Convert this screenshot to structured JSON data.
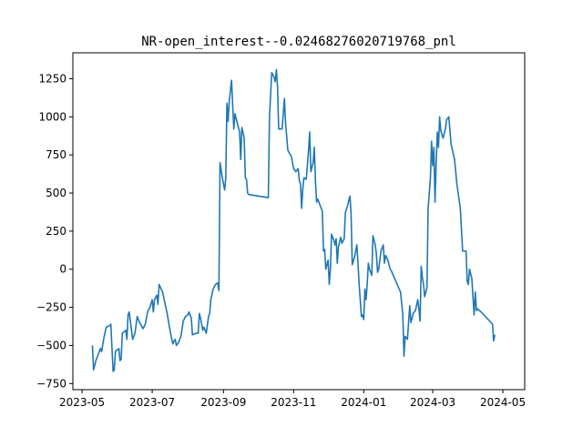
{
  "chart_data": {
    "type": "line",
    "title": "NR-open_interest--0.02468276020719768_pnl",
    "xlabel": "",
    "ylabel": "",
    "xlim": [
      "2023-04-23",
      "2024-05-20"
    ],
    "ylim": [
      -790,
      1420
    ],
    "x_ticks": [
      {
        "date": "2023-05-01",
        "label": "2023-05"
      },
      {
        "date": "2023-07-01",
        "label": "2023-07"
      },
      {
        "date": "2023-09-01",
        "label": "2023-09"
      },
      {
        "date": "2023-11-01",
        "label": "2023-11"
      },
      {
        "date": "2024-01-01",
        "label": "2024-01"
      },
      {
        "date": "2024-03-01",
        "label": "2024-03"
      },
      {
        "date": "2024-05-01",
        "label": "2024-05"
      }
    ],
    "y_ticks": [
      {
        "value": -750,
        "label": "−750"
      },
      {
        "value": -500,
        "label": "−500"
      },
      {
        "value": -250,
        "label": "−250"
      },
      {
        "value": 0,
        "label": "0"
      },
      {
        "value": 250,
        "label": "250"
      },
      {
        "value": 500,
        "label": "500"
      },
      {
        "value": 750,
        "label": "750"
      },
      {
        "value": 1000,
        "label": "1000"
      },
      {
        "value": 1250,
        "label": "1250"
      }
    ],
    "grid": false,
    "series": [
      {
        "color": "#1f77b4",
        "points": [
          [
            "2023-05-10",
            -500
          ],
          [
            "2023-05-11",
            -660
          ],
          [
            "2023-05-13",
            -600
          ],
          [
            "2023-05-15",
            -560
          ],
          [
            "2023-05-17",
            -520
          ],
          [
            "2023-05-18",
            -540
          ],
          [
            "2023-05-20",
            -450
          ],
          [
            "2023-05-22",
            -380
          ],
          [
            "2023-05-25",
            -370
          ],
          [
            "2023-05-26",
            -360
          ],
          [
            "2023-05-28",
            -670
          ],
          [
            "2023-05-29",
            -660
          ],
          [
            "2023-05-30",
            -540
          ],
          [
            "2023-06-02",
            -520
          ],
          [
            "2023-06-03",
            -600
          ],
          [
            "2023-06-04",
            -590
          ],
          [
            "2023-06-05",
            -420
          ],
          [
            "2023-06-08",
            -400
          ],
          [
            "2023-06-09",
            -460
          ],
          [
            "2023-06-10",
            -300
          ],
          [
            "2023-06-11",
            -280
          ],
          [
            "2023-06-12",
            -340
          ],
          [
            "2023-06-14",
            -460
          ],
          [
            "2023-06-16",
            -420
          ],
          [
            "2023-06-18",
            -310
          ],
          [
            "2023-06-20",
            -350
          ],
          [
            "2023-06-23",
            -390
          ],
          [
            "2023-06-25",
            -360
          ],
          [
            "2023-06-27",
            -280
          ],
          [
            "2023-06-29",
            -250
          ],
          [
            "2023-07-01",
            -200
          ],
          [
            "2023-07-02",
            -280
          ],
          [
            "2023-07-03",
            -200
          ],
          [
            "2023-07-05",
            -170
          ],
          [
            "2023-07-06",
            -230
          ],
          [
            "2023-07-07",
            -100
          ],
          [
            "2023-07-10",
            -150
          ],
          [
            "2023-07-12",
            -220
          ],
          [
            "2023-07-14",
            -290
          ],
          [
            "2023-07-16",
            -380
          ],
          [
            "2023-07-18",
            -460
          ],
          [
            "2023-07-19",
            -490
          ],
          [
            "2023-07-20",
            -470
          ],
          [
            "2023-07-21",
            -460
          ],
          [
            "2023-07-22",
            -500
          ],
          [
            "2023-07-24",
            -480
          ],
          [
            "2023-07-26",
            -440
          ],
          [
            "2023-07-28",
            -340
          ],
          [
            "2023-07-30",
            -310
          ],
          [
            "2023-08-01",
            -300
          ],
          [
            "2023-08-02",
            -280
          ],
          [
            "2023-08-03",
            -300
          ],
          [
            "2023-08-04",
            -320
          ],
          [
            "2023-08-05",
            -430
          ],
          [
            "2023-08-08",
            -420
          ],
          [
            "2023-08-10",
            -420
          ],
          [
            "2023-08-11",
            -290
          ],
          [
            "2023-08-12",
            -320
          ],
          [
            "2023-08-14",
            -400
          ],
          [
            "2023-08-15",
            -380
          ],
          [
            "2023-08-17",
            -420
          ],
          [
            "2023-08-19",
            -310
          ],
          [
            "2023-08-20",
            -290
          ],
          [
            "2023-08-21",
            -200
          ],
          [
            "2023-08-23",
            -130
          ],
          [
            "2023-08-25",
            -100
          ],
          [
            "2023-08-27",
            -90
          ],
          [
            "2023-08-28",
            -140
          ],
          [
            "2023-08-29",
            700
          ],
          [
            "2023-08-31",
            600
          ],
          [
            "2023-09-02",
            520
          ],
          [
            "2023-09-03",
            600
          ],
          [
            "2023-09-04",
            1090
          ],
          [
            "2023-09-05",
            970
          ],
          [
            "2023-09-06",
            1100
          ],
          [
            "2023-09-08",
            1240
          ],
          [
            "2023-09-10",
            920
          ],
          [
            "2023-09-11",
            1020
          ],
          [
            "2023-09-13",
            960
          ],
          [
            "2023-09-15",
            900
          ],
          [
            "2023-09-16",
            720
          ],
          [
            "2023-09-17",
            930
          ],
          [
            "2023-09-19",
            860
          ],
          [
            "2023-09-20",
            600
          ],
          [
            "2023-09-21",
            590
          ],
          [
            "2023-09-22",
            500
          ],
          [
            "2023-09-23",
            490
          ],
          [
            "2023-10-10",
            470
          ],
          [
            "2023-10-11",
            1000
          ],
          [
            "2023-10-13",
            1290
          ],
          [
            "2023-10-15",
            1260
          ],
          [
            "2023-10-16",
            1230
          ],
          [
            "2023-10-17",
            1310
          ],
          [
            "2023-10-18",
            1200
          ],
          [
            "2023-10-19",
            920
          ],
          [
            "2023-10-22",
            920
          ],
          [
            "2023-10-24",
            1120
          ],
          [
            "2023-10-25",
            960
          ],
          [
            "2023-10-27",
            780
          ],
          [
            "2023-10-30",
            740
          ],
          [
            "2023-11-01",
            660
          ],
          [
            "2023-11-03",
            640
          ],
          [
            "2023-11-05",
            660
          ],
          [
            "2023-11-06",
            580
          ],
          [
            "2023-11-07",
            560
          ],
          [
            "2023-11-08",
            400
          ],
          [
            "2023-11-09",
            530
          ],
          [
            "2023-11-10",
            600
          ],
          [
            "2023-11-12",
            590
          ],
          [
            "2023-11-14",
            780
          ],
          [
            "2023-11-15",
            900
          ],
          [
            "2023-11-16",
            640
          ],
          [
            "2023-11-18",
            700
          ],
          [
            "2023-11-19",
            800
          ],
          [
            "2023-11-20",
            580
          ],
          [
            "2023-11-21",
            440
          ],
          [
            "2023-11-22",
            460
          ],
          [
            "2023-11-24",
            420
          ],
          [
            "2023-11-26",
            380
          ],
          [
            "2023-11-27",
            120
          ],
          [
            "2023-11-28",
            130
          ],
          [
            "2023-11-29",
            0
          ],
          [
            "2023-12-01",
            60
          ],
          [
            "2023-12-02",
            -100
          ],
          [
            "2023-12-03",
            0
          ],
          [
            "2023-12-04",
            230
          ],
          [
            "2023-12-06",
            190
          ],
          [
            "2023-12-07",
            160
          ],
          [
            "2023-12-08",
            200
          ],
          [
            "2023-12-09",
            40
          ],
          [
            "2023-12-10",
            150
          ],
          [
            "2023-12-12",
            210
          ],
          [
            "2023-12-13",
            170
          ],
          [
            "2023-12-15",
            200
          ],
          [
            "2023-12-16",
            370
          ],
          [
            "2023-12-18",
            420
          ],
          [
            "2023-12-20",
            480
          ],
          [
            "2023-12-21",
            360
          ],
          [
            "2023-12-22",
            30
          ],
          [
            "2023-12-24",
            80
          ],
          [
            "2023-12-26",
            160
          ],
          [
            "2023-12-27",
            40
          ],
          [
            "2023-12-28",
            -100
          ],
          [
            "2023-12-30",
            -310
          ],
          [
            "2023-12-31",
            -300
          ],
          [
            "2024-01-01",
            -330
          ],
          [
            "2024-01-02",
            -130
          ],
          [
            "2024-01-03",
            -200
          ],
          [
            "2024-01-04",
            -100
          ],
          [
            "2024-01-05",
            40
          ],
          [
            "2024-01-06",
            0
          ],
          [
            "2024-01-08",
            -40
          ],
          [
            "2024-01-09",
            220
          ],
          [
            "2024-01-11",
            160
          ],
          [
            "2024-01-12",
            100
          ],
          [
            "2024-01-13",
            -20
          ],
          [
            "2024-01-14",
            0
          ],
          [
            "2024-01-16",
            120
          ],
          [
            "2024-01-18",
            160
          ],
          [
            "2024-01-19",
            40
          ],
          [
            "2024-01-20",
            90
          ],
          [
            "2024-01-22",
            60
          ],
          [
            "2024-01-24",
            0
          ],
          [
            "2024-01-25",
            -10
          ],
          [
            "2024-02-02",
            -150
          ],
          [
            "2024-02-04",
            -300
          ],
          [
            "2024-02-05",
            -570
          ],
          [
            "2024-02-06",
            -440
          ],
          [
            "2024-02-08",
            -460
          ],
          [
            "2024-02-10",
            -240
          ],
          [
            "2024-02-11",
            -350
          ],
          [
            "2024-02-13",
            -290
          ],
          [
            "2024-02-15",
            -270
          ],
          [
            "2024-02-17",
            -200
          ],
          [
            "2024-02-18",
            -260
          ],
          [
            "2024-02-19",
            -340
          ],
          [
            "2024-02-20",
            20
          ],
          [
            "2024-02-21",
            -50
          ],
          [
            "2024-02-22",
            -100
          ],
          [
            "2024-02-23",
            -180
          ],
          [
            "2024-02-25",
            -120
          ],
          [
            "2024-02-26",
            400
          ],
          [
            "2024-02-27",
            500
          ],
          [
            "2024-02-28",
            600
          ],
          [
            "2024-02-29",
            840
          ],
          [
            "2024-03-01",
            680
          ],
          [
            "2024-03-02",
            800
          ],
          [
            "2024-03-03",
            440
          ],
          [
            "2024-03-04",
            700
          ],
          [
            "2024-03-05",
            900
          ],
          [
            "2024-03-06",
            800
          ],
          [
            "2024-03-07",
            1000
          ],
          [
            "2024-03-08",
            910
          ],
          [
            "2024-03-10",
            860
          ],
          [
            "2024-03-12",
            920
          ],
          [
            "2024-03-13",
            980
          ],
          [
            "2024-03-15",
            1000
          ],
          [
            "2024-03-17",
            820
          ],
          [
            "2024-03-20",
            720
          ],
          [
            "2024-03-22",
            560
          ],
          [
            "2024-03-25",
            400
          ],
          [
            "2024-03-27",
            120
          ],
          [
            "2024-03-30",
            120
          ],
          [
            "2024-03-31",
            -80
          ],
          [
            "2024-04-01",
            -100
          ],
          [
            "2024-04-02",
            0
          ],
          [
            "2024-04-04",
            -60
          ],
          [
            "2024-04-05",
            -180
          ],
          [
            "2024-04-06",
            -300
          ],
          [
            "2024-04-07",
            -150
          ],
          [
            "2024-04-08",
            -270
          ],
          [
            "2024-04-09",
            -260
          ],
          [
            "2024-04-12",
            -280
          ],
          [
            "2024-04-22",
            -360
          ],
          [
            "2024-04-23",
            -470
          ],
          [
            "2024-04-24",
            -430
          ]
        ]
      }
    ]
  }
}
